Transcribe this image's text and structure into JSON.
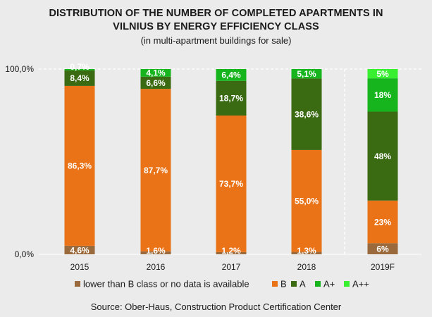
{
  "header": {
    "title_line1": "DISTRIBUTION OF THE NUMBER OF COMPLETED APARTMENTS IN",
    "title_line2": "VILNIUS BY ENERGY EFFICIENCY CLASS",
    "subtitle": "(in multi-apartment buildings for sale)"
  },
  "source": "Source: Ober-Haus, Construction Product Certification Center",
  "chart_data": {
    "type": "bar",
    "stacked": true,
    "ylim": [
      0,
      100
    ],
    "y_ticks": [
      "0,0%",
      "100,0%"
    ],
    "categories": [
      "2015",
      "2016",
      "2017",
      "2018",
      "2019F"
    ],
    "forecast_divider_before": "2019F",
    "series": [
      {
        "name": "lower than B class or no data is available",
        "color": "#9b6a3c",
        "values": [
          4.6,
          1.6,
          1.2,
          1.3,
          6
        ],
        "labels": [
          "4,6%",
          "1,6%",
          "1,2%",
          "1,3%",
          "6%"
        ]
      },
      {
        "name": "B",
        "color": "#ea7317",
        "values": [
          86.3,
          87.7,
          73.7,
          55.0,
          23
        ],
        "labels": [
          "86,3%",
          "87,7%",
          "73,7%",
          "55,0%",
          "23%"
        ]
      },
      {
        "name": "A",
        "color": "#3a6a12",
        "values": [
          8.4,
          6.6,
          18.7,
          38.6,
          48
        ],
        "labels": [
          "8,4%",
          "6,6%",
          "18,7%",
          "38,6%",
          "48%"
        ]
      },
      {
        "name": "A+",
        "color": "#16b51e",
        "values": [
          0.7,
          4.1,
          6.4,
          5.1,
          18
        ],
        "labels": [
          "0,7%",
          "4,1%",
          "6,4%",
          "5,1%",
          "18%"
        ]
      },
      {
        "name": "A++",
        "color": "#39f030",
        "values": [
          0,
          0,
          0,
          0,
          5
        ],
        "labels": [
          "",
          "",
          "",
          "",
          "5%"
        ]
      }
    ]
  }
}
